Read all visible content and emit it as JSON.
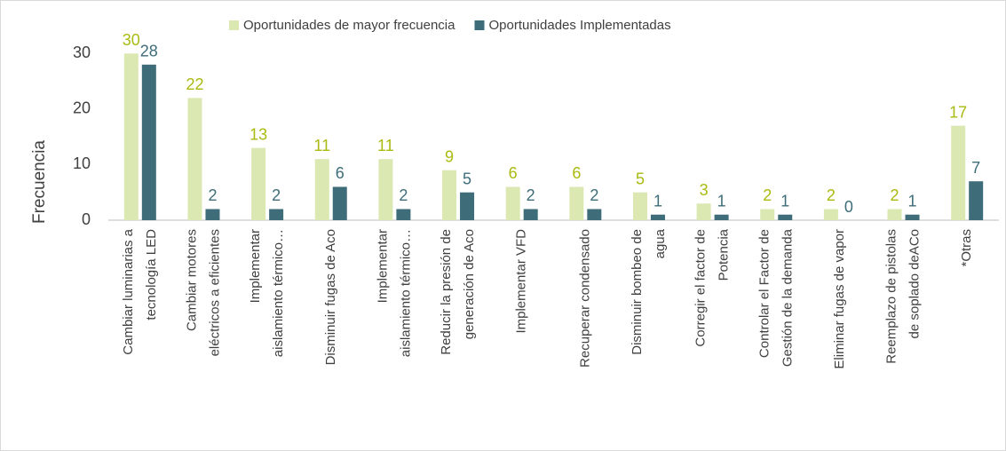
{
  "chart_data": {
    "type": "bar",
    "y_label": "Frecuencia",
    "categories": [
      "Cambiar luminarias a\ntecnología LED",
      "Cambiar motores\neléctricos a eficientes",
      "Implementar\naislamiento térmico…",
      "Disminuir fugas de Aco",
      "Implementar\naislamiento térmico…",
      "Reducir la presión de\ngeneración de Aco",
      "Implementar VFD",
      "Recuperar condensado",
      "Disminuir bombeo de\nagua",
      "Corregir el factor de\nPotencia",
      "Controlar el Factor de\nGestión de la demanda",
      "Eliminar fugas de vapor",
      "Reemplazo de pistolas\nde soplado deACo",
      "*Otras"
    ],
    "series": [
      {
        "name": "Oportunidades de mayor frecuencia",
        "color": "#dbe8b2",
        "label_color": "#a9ba10",
        "values": [
          30,
          22,
          13,
          11,
          11,
          9,
          6,
          6,
          5,
          3,
          2,
          2,
          2,
          17
        ]
      },
      {
        "name": "Oportunidades Implementadas",
        "color": "#3e6d79",
        "label_color": "#3e6d79",
        "values": [
          28,
          2,
          2,
          6,
          2,
          5,
          2,
          2,
          1,
          1,
          1,
          0,
          1,
          7
        ]
      }
    ],
    "ylim": [
      0,
      35
    ],
    "yticks": [
      0,
      10,
      20,
      30
    ],
    "grid": false,
    "legend": "top"
  }
}
